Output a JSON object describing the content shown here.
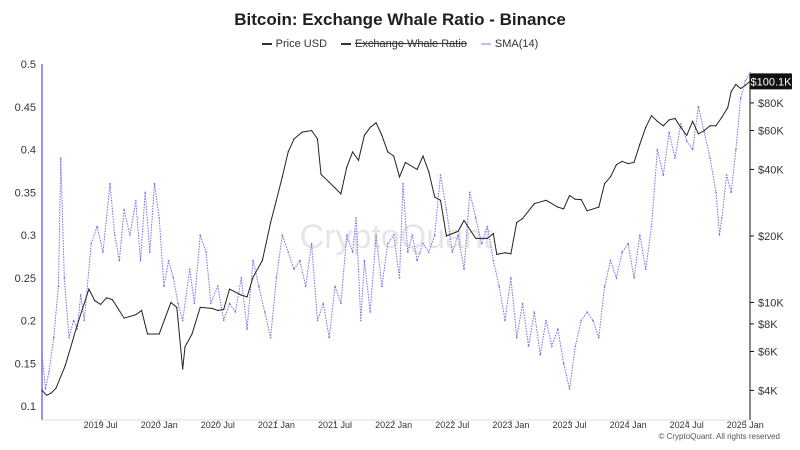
{
  "chart_data": {
    "type": "line",
    "title": "Bitcoin: Exchange Whale Ratio - Binance",
    "watermark": "CryptoQuant",
    "copyright": "© CryptoQuant. All rights reserved",
    "legend": [
      {
        "name": "Price USD",
        "color": "#333333",
        "hidden": false
      },
      {
        "name": "Exchange Whale Ratio",
        "color": "#333333",
        "hidden": true
      },
      {
        "name": "SMA(14)",
        "color": "#7b6cf0",
        "hidden": false
      }
    ],
    "x_ticks": [
      "2019 Jul",
      "2020 Jan",
      "2020 Jul",
      "2021 Jan",
      "2021 Jul",
      "2022 Jan",
      "2022 Jul",
      "2023 Jan",
      "2023 Jul",
      "2024 Jan",
      "2024 Jul",
      "2025 Jan"
    ],
    "x_range": [
      2019.0,
      2025.04
    ],
    "y_left": {
      "range": [
        0.1,
        0.5
      ],
      "ticks": [
        "0.5",
        "0.45",
        "0.4",
        "0.35",
        "0.3",
        "0.25",
        "0.2",
        "0.15",
        "0.1"
      ],
      "tick_values": [
        0.5,
        0.45,
        0.4,
        0.35,
        0.3,
        0.25,
        0.2,
        0.15,
        0.1
      ]
    },
    "y_right": {
      "scale": "log",
      "range": [
        3400,
        120000
      ],
      "ticks": [
        "$80K",
        "$60K",
        "$40K",
        "$20K",
        "$10K",
        "$8K",
        "$6K",
        "$4K"
      ],
      "tick_values": [
        80000,
        60000,
        40000,
        20000,
        10000,
        8000,
        6000,
        4000
      ],
      "last_value_label": "$100.1K",
      "last_value": 100100
    },
    "series": [
      {
        "name": "Price USD",
        "axis": "right",
        "points": [
          [
            2019.0,
            4000
          ],
          [
            2019.04,
            3800
          ],
          [
            2019.08,
            3900
          ],
          [
            2019.12,
            4100
          ],
          [
            2019.2,
            5200
          ],
          [
            2019.3,
            7900
          ],
          [
            2019.4,
            11500
          ],
          [
            2019.45,
            10200
          ],
          [
            2019.5,
            9800
          ],
          [
            2019.55,
            10500
          ],
          [
            2019.6,
            10300
          ],
          [
            2019.7,
            8500
          ],
          [
            2019.8,
            8800
          ],
          [
            2019.85,
            9200
          ],
          [
            2019.9,
            7200
          ],
          [
            2020.0,
            7200
          ],
          [
            2020.05,
            8500
          ],
          [
            2020.1,
            10000
          ],
          [
            2020.15,
            9500
          ],
          [
            2020.2,
            5000
          ],
          [
            2020.22,
            6300
          ],
          [
            2020.28,
            7200
          ],
          [
            2020.35,
            9500
          ],
          [
            2020.45,
            9400
          ],
          [
            2020.5,
            9200
          ],
          [
            2020.55,
            9300
          ],
          [
            2020.6,
            11500
          ],
          [
            2020.7,
            10800
          ],
          [
            2020.75,
            10600
          ],
          [
            2020.8,
            13000
          ],
          [
            2020.88,
            15500
          ],
          [
            2020.95,
            23000
          ],
          [
            2021.0,
            29000
          ],
          [
            2021.05,
            37000
          ],
          [
            2021.1,
            48000
          ],
          [
            2021.15,
            55000
          ],
          [
            2021.22,
            59000
          ],
          [
            2021.3,
            60000
          ],
          [
            2021.35,
            55000
          ],
          [
            2021.38,
            38000
          ],
          [
            2021.45,
            35000
          ],
          [
            2021.5,
            33000
          ],
          [
            2021.55,
            31000
          ],
          [
            2021.6,
            41000
          ],
          [
            2021.65,
            48000
          ],
          [
            2021.7,
            44000
          ],
          [
            2021.75,
            57000
          ],
          [
            2021.8,
            62000
          ],
          [
            2021.85,
            65000
          ],
          [
            2021.9,
            57000
          ],
          [
            2021.95,
            48000
          ],
          [
            2022.0,
            46000
          ],
          [
            2022.05,
            37000
          ],
          [
            2022.1,
            43000
          ],
          [
            2022.2,
            40000
          ],
          [
            2022.25,
            46000
          ],
          [
            2022.3,
            39000
          ],
          [
            2022.35,
            30000
          ],
          [
            2022.4,
            29000
          ],
          [
            2022.45,
            20000
          ],
          [
            2022.55,
            21000
          ],
          [
            2022.6,
            23500
          ],
          [
            2022.7,
            19500
          ],
          [
            2022.8,
            19500
          ],
          [
            2022.85,
            20500
          ],
          [
            2022.88,
            16500
          ],
          [
            2022.95,
            16800
          ],
          [
            2023.0,
            16600
          ],
          [
            2023.05,
            23000
          ],
          [
            2023.1,
            24000
          ],
          [
            2023.2,
            28000
          ],
          [
            2023.3,
            29000
          ],
          [
            2023.4,
            27000
          ],
          [
            2023.45,
            26500
          ],
          [
            2023.5,
            30500
          ],
          [
            2023.55,
            29300
          ],
          [
            2023.6,
            29200
          ],
          [
            2023.65,
            26000
          ],
          [
            2023.75,
            27000
          ],
          [
            2023.8,
            34500
          ],
          [
            2023.85,
            37000
          ],
          [
            2023.9,
            42000
          ],
          [
            2023.95,
            43500
          ],
          [
            2024.0,
            42500
          ],
          [
            2024.05,
            43000
          ],
          [
            2024.1,
            52000
          ],
          [
            2024.15,
            62000
          ],
          [
            2024.2,
            70000
          ],
          [
            2024.25,
            66000
          ],
          [
            2024.3,
            63000
          ],
          [
            2024.35,
            67000
          ],
          [
            2024.4,
            68000
          ],
          [
            2024.45,
            62000
          ],
          [
            2024.5,
            57000
          ],
          [
            2024.55,
            66000
          ],
          [
            2024.6,
            58000
          ],
          [
            2024.65,
            60000
          ],
          [
            2024.7,
            63000
          ],
          [
            2024.75,
            63000
          ],
          [
            2024.8,
            69000
          ],
          [
            2024.85,
            76000
          ],
          [
            2024.88,
            90000
          ],
          [
            2024.92,
            97000
          ],
          [
            2024.96,
            93000
          ],
          [
            2025.0,
            96000
          ],
          [
            2025.04,
            100100
          ]
        ]
      },
      {
        "name": "SMA(14)",
        "axis": "left",
        "points": [
          [
            2019.0,
            0.16
          ],
          [
            2019.03,
            0.12
          ],
          [
            2019.06,
            0.14
          ],
          [
            2019.1,
            0.18
          ],
          [
            2019.14,
            0.24
          ],
          [
            2019.16,
            0.39
          ],
          [
            2019.19,
            0.25
          ],
          [
            2019.23,
            0.18
          ],
          [
            2019.27,
            0.2
          ],
          [
            2019.3,
            0.19
          ],
          [
            2019.33,
            0.23
          ],
          [
            2019.36,
            0.2
          ],
          [
            2019.42,
            0.29
          ],
          [
            2019.47,
            0.31
          ],
          [
            2019.52,
            0.28
          ],
          [
            2019.58,
            0.36
          ],
          [
            2019.62,
            0.3
          ],
          [
            2019.66,
            0.27
          ],
          [
            2019.7,
            0.33
          ],
          [
            2019.75,
            0.3
          ],
          [
            2019.8,
            0.34
          ],
          [
            2019.84,
            0.27
          ],
          [
            2019.88,
            0.35
          ],
          [
            2019.92,
            0.28
          ],
          [
            2019.96,
            0.36
          ],
          [
            2020.0,
            0.32
          ],
          [
            2020.04,
            0.24
          ],
          [
            2020.08,
            0.27
          ],
          [
            2020.12,
            0.25
          ],
          [
            2020.16,
            0.22
          ],
          [
            2020.2,
            0.2
          ],
          [
            2020.26,
            0.26
          ],
          [
            2020.3,
            0.22
          ],
          [
            2020.35,
            0.3
          ],
          [
            2020.4,
            0.28
          ],
          [
            2020.44,
            0.22
          ],
          [
            2020.5,
            0.24
          ],
          [
            2020.55,
            0.2
          ],
          [
            2020.6,
            0.22
          ],
          [
            2020.65,
            0.21
          ],
          [
            2020.7,
            0.25
          ],
          [
            2020.75,
            0.19
          ],
          [
            2020.8,
            0.27
          ],
          [
            2020.85,
            0.24
          ],
          [
            2020.9,
            0.21
          ],
          [
            2020.95,
            0.18
          ],
          [
            2021.0,
            0.25
          ],
          [
            2021.05,
            0.3
          ],
          [
            2021.1,
            0.28
          ],
          [
            2021.15,
            0.26
          ],
          [
            2021.2,
            0.27
          ],
          [
            2021.25,
            0.24
          ],
          [
            2021.3,
            0.29
          ],
          [
            2021.35,
            0.2
          ],
          [
            2021.4,
            0.22
          ],
          [
            2021.45,
            0.18
          ],
          [
            2021.5,
            0.24
          ],
          [
            2021.55,
            0.22
          ],
          [
            2021.6,
            0.3
          ],
          [
            2021.65,
            0.28
          ],
          [
            2021.68,
            0.32
          ],
          [
            2021.72,
            0.2
          ],
          [
            2021.75,
            0.27
          ],
          [
            2021.8,
            0.21
          ],
          [
            2021.85,
            0.3
          ],
          [
            2021.9,
            0.24
          ],
          [
            2021.95,
            0.29
          ],
          [
            2022.0,
            0.3
          ],
          [
            2022.05,
            0.25
          ],
          [
            2022.08,
            0.36
          ],
          [
            2022.12,
            0.28
          ],
          [
            2022.16,
            0.3
          ],
          [
            2022.2,
            0.27
          ],
          [
            2022.25,
            0.29
          ],
          [
            2022.3,
            0.28
          ],
          [
            2022.35,
            0.3
          ],
          [
            2022.4,
            0.37
          ],
          [
            2022.45,
            0.33
          ],
          [
            2022.5,
            0.28
          ],
          [
            2022.55,
            0.3
          ],
          [
            2022.6,
            0.26
          ],
          [
            2022.65,
            0.35
          ],
          [
            2022.7,
            0.32
          ],
          [
            2022.75,
            0.29
          ],
          [
            2022.8,
            0.31
          ],
          [
            2022.85,
            0.27
          ],
          [
            2022.9,
            0.24
          ],
          [
            2022.95,
            0.2
          ],
          [
            2023.0,
            0.25
          ],
          [
            2023.05,
            0.18
          ],
          [
            2023.1,
            0.22
          ],
          [
            2023.15,
            0.17
          ],
          [
            2023.2,
            0.21
          ],
          [
            2023.25,
            0.16
          ],
          [
            2023.3,
            0.2
          ],
          [
            2023.35,
            0.17
          ],
          [
            2023.4,
            0.19
          ],
          [
            2023.45,
            0.15
          ],
          [
            2023.5,
            0.12
          ],
          [
            2023.55,
            0.17
          ],
          [
            2023.6,
            0.2
          ],
          [
            2023.65,
            0.21
          ],
          [
            2023.7,
            0.2
          ],
          [
            2023.75,
            0.18
          ],
          [
            2023.8,
            0.24
          ],
          [
            2023.85,
            0.27
          ],
          [
            2023.9,
            0.25
          ],
          [
            2023.95,
            0.28
          ],
          [
            2024.0,
            0.29
          ],
          [
            2024.05,
            0.25
          ],
          [
            2024.1,
            0.3
          ],
          [
            2024.15,
            0.26
          ],
          [
            2024.2,
            0.31
          ],
          [
            2024.25,
            0.4
          ],
          [
            2024.3,
            0.37
          ],
          [
            2024.35,
            0.42
          ],
          [
            2024.4,
            0.39
          ],
          [
            2024.45,
            0.43
          ],
          [
            2024.5,
            0.41
          ],
          [
            2024.55,
            0.4
          ],
          [
            2024.6,
            0.45
          ],
          [
            2024.65,
            0.42
          ],
          [
            2024.7,
            0.39
          ],
          [
            2024.75,
            0.35
          ],
          [
            2024.78,
            0.3
          ],
          [
            2024.8,
            0.32
          ],
          [
            2024.84,
            0.37
          ],
          [
            2024.88,
            0.35
          ],
          [
            2024.92,
            0.4
          ],
          [
            2024.96,
            0.46
          ],
          [
            2025.0,
            0.48
          ],
          [
            2025.04,
            0.49
          ]
        ]
      }
    ]
  }
}
